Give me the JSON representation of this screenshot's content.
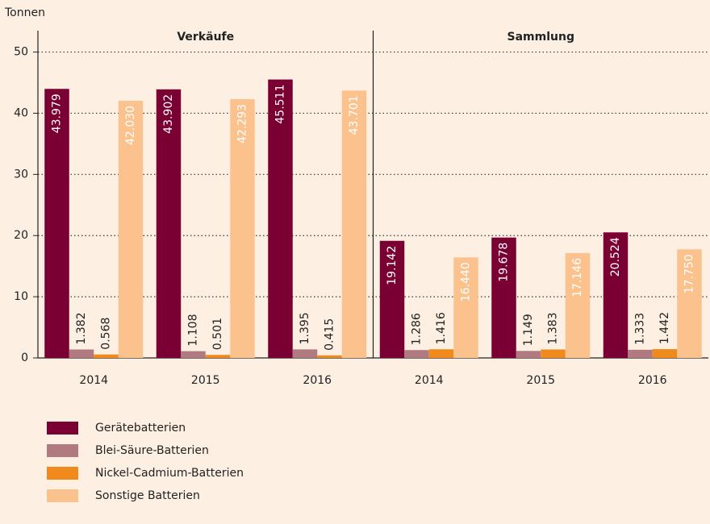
{
  "chart_data": {
    "type": "bar",
    "ylabel": "Tonnen",
    "ylim": [
      0,
      53.5
    ],
    "yticks": [
      0,
      10,
      20,
      30,
      40,
      50
    ],
    "grid": true,
    "panels": [
      {
        "title": "Verkäufe"
      },
      {
        "title": "Sammlung"
      }
    ],
    "categories": [
      "2014",
      "2015",
      "2016",
      "2014",
      "2015",
      "2016"
    ],
    "series": [
      {
        "name": "Gerätebatterien",
        "color": "#7a0033",
        "values": [
          43.979,
          43.902,
          45.511,
          19.142,
          19.678,
          20.524
        ],
        "value_labels": [
          "43.979",
          "43.902",
          "45.511",
          "19.142",
          "19.678",
          "20.524"
        ]
      },
      {
        "name": "Blei-Säure-Batterien",
        "color": "#b07a80",
        "values": [
          1.382,
          1.108,
          1.395,
          1.286,
          1.149,
          1.333
        ],
        "value_labels": [
          "1.382",
          "1.108",
          "1.395",
          "1.286",
          "1.149",
          "1.333"
        ]
      },
      {
        "name": "Nickel-Cadmium-Batterien",
        "color": "#f08a1c",
        "values": [
          0.568,
          0.501,
          0.415,
          1.416,
          1.383,
          1.442
        ],
        "value_labels": [
          "0.568",
          "0.501",
          "0.415",
          "1.416",
          "1.383",
          "1.442"
        ]
      },
      {
        "name": "Sonstige Batterien",
        "color": "#fbc28e",
        "values": [
          42.03,
          42.293,
          43.701,
          16.44,
          17.146,
          17.75
        ],
        "value_labels": [
          "42.030",
          "42.293",
          "43.701",
          "16.440",
          "17.146",
          "17.750"
        ]
      }
    ]
  }
}
